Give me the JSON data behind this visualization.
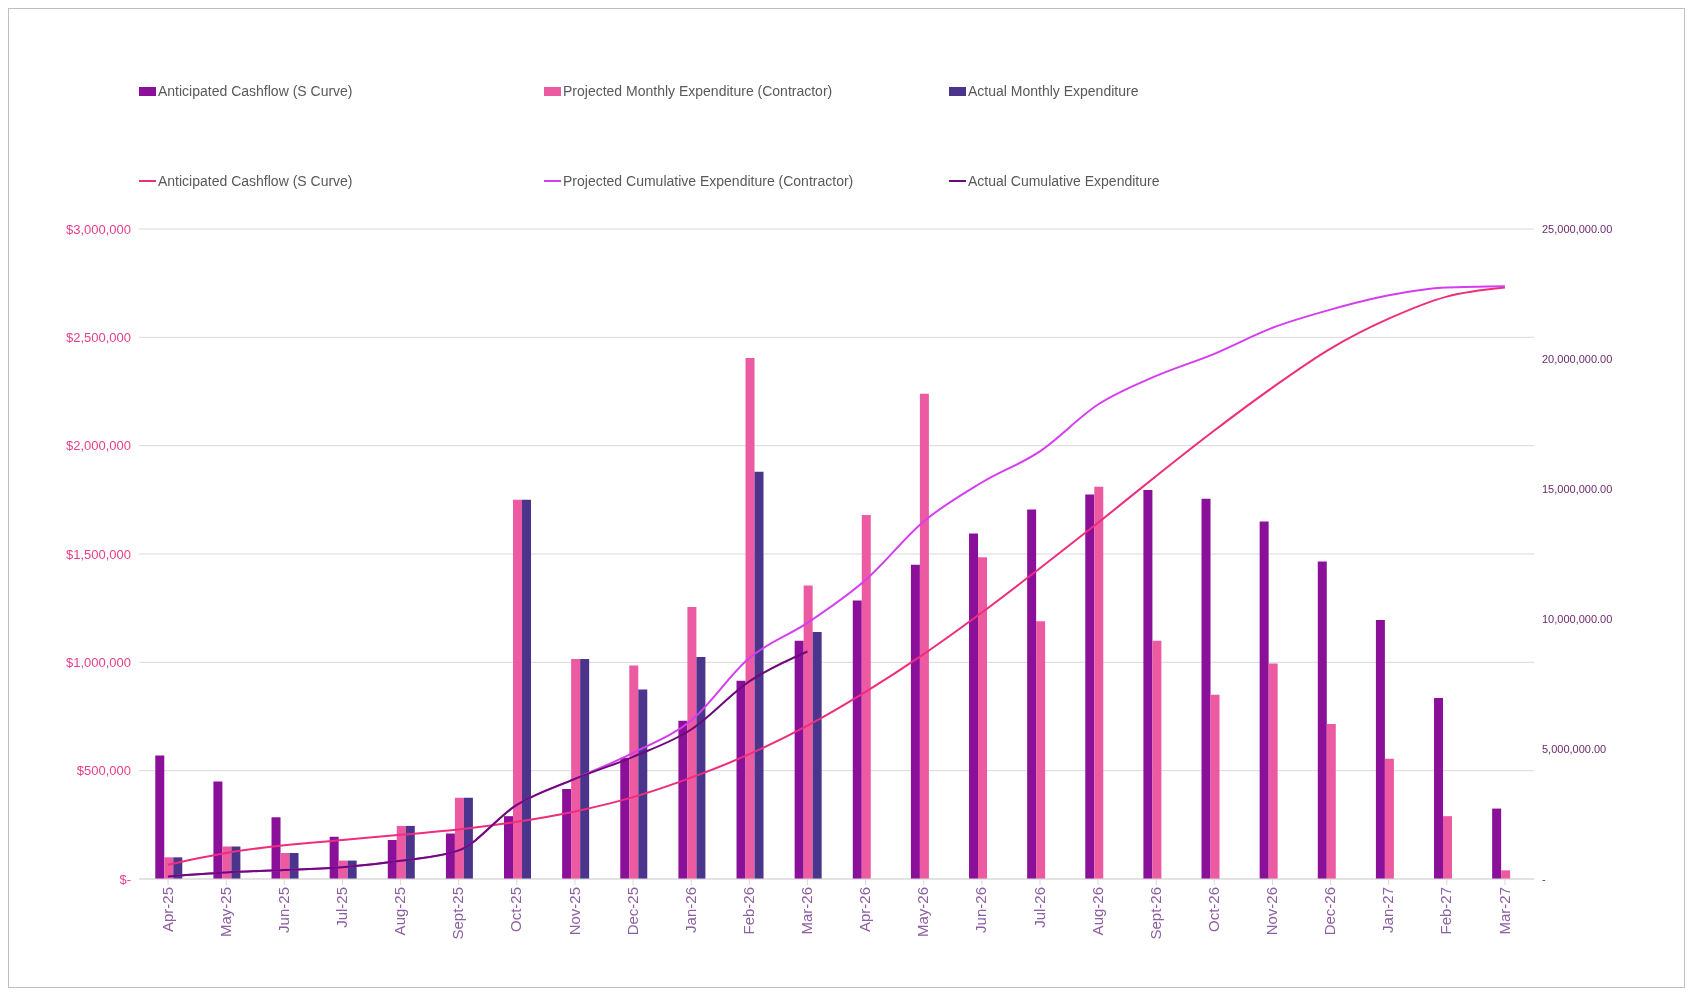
{
  "chart_data": {
    "type": "bar",
    "categories": [
      "Apr-25",
      "May-25",
      "Jun-25",
      "Jul-25",
      "Aug-25",
      "Sept-25",
      "Oct-25",
      "Nov-25",
      "Dec-25",
      "Jan-26",
      "Feb-26",
      "Mar-26",
      "Apr-26",
      "May-26",
      "Jun-26",
      "Jul-26",
      "Aug-26",
      "Sept-26",
      "Oct-26",
      "Nov-26",
      "Dec-26",
      "Jan-27",
      "Feb-27",
      "Mar-27"
    ],
    "series": [
      {
        "name": "Anticipated Cashflow (S Curve)",
        "color": "#8b1099",
        "values": [
          570000,
          450000,
          285000,
          195000,
          180000,
          210000,
          290000,
          415000,
          560000,
          730000,
          915000,
          1100000,
          1285000,
          1450000,
          1595000,
          1705000,
          1775000,
          1795000,
          1755000,
          1650000,
          1465000,
          1195000,
          835000,
          325000
        ]
      },
      {
        "name": "Projected Monthly Expenditure (Contractor)",
        "color": "#ec5aa2",
        "values": [
          100000,
          150000,
          120000,
          85000,
          245000,
          375000,
          1750000,
          1015000,
          985000,
          1255000,
          2405000,
          1355000,
          1680000,
          2240000,
          1485000,
          1190000,
          1810000,
          1100000,
          850000,
          995000,
          715000,
          555000,
          290000,
          40000
        ]
      },
      {
        "name": "Actual Monthly Expenditure",
        "color": "#4a348c",
        "values": [
          100000,
          150000,
          120000,
          85000,
          245000,
          375000,
          1750000,
          1015000,
          875000,
          1025000,
          1880000,
          1140000,
          null,
          null,
          null,
          null,
          null,
          null,
          null,
          null,
          null,
          null,
          null,
          null
        ]
      },
      {
        "name": "Anticipated Cashflow (S Curve)",
        "type": "line",
        "axis": "y2",
        "color": "#ee2d7d",
        "values": [
          550000,
          1000000,
          1300000,
          1500000,
          1700000,
          1900000,
          2200000,
          2600000,
          3150000,
          3900000,
          4800000,
          5900000,
          7200000,
          8650000,
          10250000,
          11950000,
          13700000,
          15500000,
          17250000,
          18900000,
          20400000,
          21550000,
          22400000,
          22750000
        ]
      },
      {
        "name": "Projected Cumulative Expenditure (Contractor)",
        "type": "line",
        "axis": "y2",
        "color": "#d53df0",
        "values": [
          100000,
          250000,
          350000,
          450000,
          700000,
          1100000,
          2850000,
          3850000,
          4850000,
          6100000,
          8500000,
          9850000,
          11500000,
          13750000,
          15250000,
          16450000,
          18250000,
          19350000,
          20200000,
          21200000,
          21900000,
          22450000,
          22750000,
          22800000
        ]
      },
      {
        "name": "Actual Cumulative Expenditure",
        "type": "line",
        "axis": "y2",
        "color": "#6b0a78",
        "values": [
          100000,
          250000,
          350000,
          450000,
          700000,
          1100000,
          2850000,
          3850000,
          4700000,
          5750000,
          7600000,
          8750000,
          null,
          null,
          null,
          null,
          null,
          null,
          null,
          null,
          null,
          null,
          null,
          null
        ]
      }
    ],
    "ylim": [
      0,
      3000000
    ],
    "yticks": [
      {
        "value": 0,
        "label": "$-"
      },
      {
        "value": 500000,
        "label": "$500,000"
      },
      {
        "value": 1000000,
        "label": "$1,000,000"
      },
      {
        "value": 1500000,
        "label": "$1,500,000"
      },
      {
        "value": 2000000,
        "label": "$2,000,000"
      },
      {
        "value": 2500000,
        "label": "$2,500,000"
      },
      {
        "value": 3000000,
        "label": "$3,000,000"
      }
    ],
    "y2lim": [
      0,
      25000000
    ],
    "y2ticks": [
      {
        "value": 0,
        "label": "-"
      },
      {
        "value": 5000000,
        "label": "5,000,000.00"
      },
      {
        "value": 10000000,
        "label": "10,000,000.00"
      },
      {
        "value": 15000000,
        "label": "15,000,000.00"
      },
      {
        "value": 20000000,
        "label": "20,000,000.00"
      },
      {
        "value": 25000000,
        "label": "25,000,000.00"
      }
    ],
    "grid": "y",
    "legend": "top",
    "marker": "none",
    "line_style": "solid"
  }
}
